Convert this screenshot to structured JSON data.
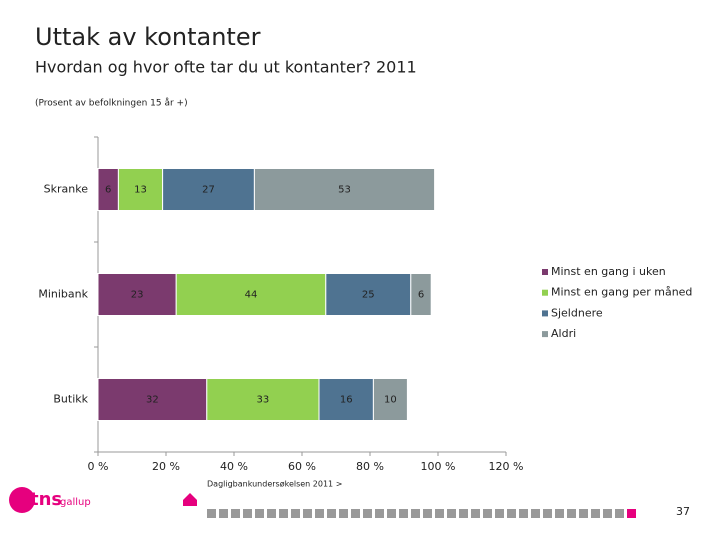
{
  "chart_data": {
    "type": "bar",
    "orientation": "horizontal",
    "stacked": true,
    "title": "Uttak av kontanter",
    "subtitle": "Hvordan og hvor ofte tar du ut kontanter? 2011",
    "note": "(Prosent av befolkningen 15 år +)",
    "categories": [
      "Skranke",
      "Minibank",
      "Butikk"
    ],
    "series": [
      {
        "name": "Minst en gang i uken",
        "color": "#7b3a6e",
        "values": [
          6,
          23,
          32
        ]
      },
      {
        "name": "Minst en gang per måned",
        "color": "#92d050",
        "values": [
          13,
          44,
          33
        ]
      },
      {
        "name": "Sjeldnere",
        "color": "#4f7391",
        "values": [
          27,
          25,
          16
        ]
      },
      {
        "name": "Aldri",
        "color": "#8c9a9c",
        "values": [
          53,
          6,
          10
        ]
      }
    ],
    "xlim": [
      0,
      120
    ],
    "xticks": [
      {
        "value": 0,
        "label": "0 %"
      },
      {
        "value": 20,
        "label": "20 %"
      },
      {
        "value": 40,
        "label": "40 %"
      },
      {
        "value": 60,
        "label": "60 %"
      },
      {
        "value": 80,
        "label": "80 %"
      },
      {
        "value": 100,
        "label": "100 %"
      },
      {
        "value": 120,
        "label": "120 %"
      }
    ],
    "legend": "right"
  },
  "footer": {
    "source": "Dagligbankundersøkelsen 2011 >",
    "page": "37",
    "logo": "tns",
    "logo_sub": "gallup"
  }
}
